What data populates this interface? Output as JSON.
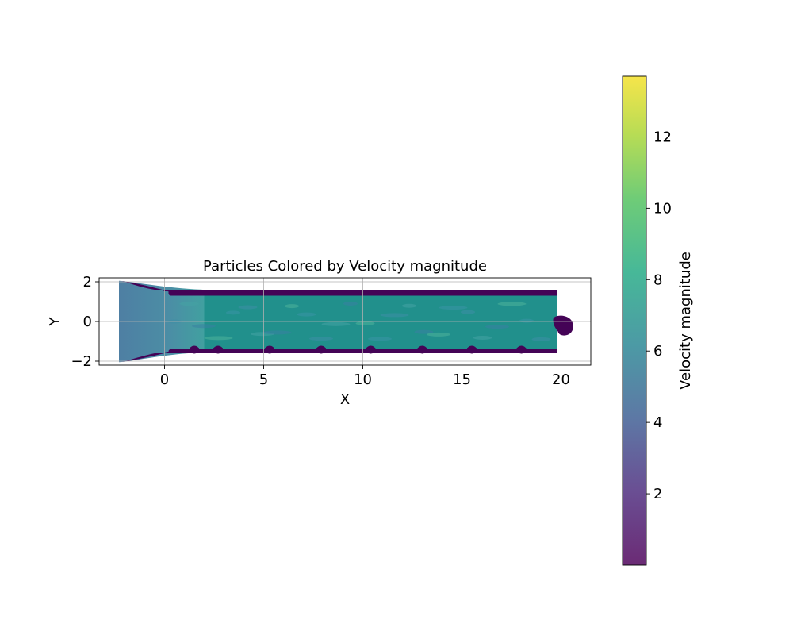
{
  "chart_data": {
    "type": "scatter",
    "title": "Particles Colored by Velocity magnitude",
    "xlabel": "X",
    "ylabel": "Y",
    "xlim": [
      -3.3,
      21.5
    ],
    "ylim": [
      -2.2,
      2.2
    ],
    "xticks": [
      0,
      5,
      10,
      15,
      20
    ],
    "yticks": [
      -2,
      0,
      2
    ],
    "grid": true,
    "colormap": "viridis",
    "colorbar": {
      "label": "Velocity magnitude",
      "range": [
        0.0,
        13.7
      ],
      "ticks": [
        2,
        4,
        6,
        8,
        10,
        12
      ]
    },
    "regions": [
      {
        "name": "inlet",
        "x": [
          -2.3,
          0.8
        ],
        "y": [
          -2.05,
          2.05
        ],
        "velocity": 4.5
      },
      {
        "name": "channel",
        "x": [
          0.8,
          19.8
        ],
        "y": [
          -1.45,
          1.45
        ],
        "velocity": 6.8
      },
      {
        "name": "top-wall",
        "x": [
          -0.5,
          19.8
        ],
        "y": [
          1.3,
          1.6
        ],
        "velocity": 0.1
      },
      {
        "name": "bottom-wall",
        "x": [
          -0.5,
          19.8
        ],
        "y": [
          -1.6,
          -1.4
        ],
        "velocity": 0.1
      },
      {
        "name": "outlet-blob",
        "x": [
          19.6,
          20.6
        ],
        "y": [
          -0.75,
          0.3
        ],
        "velocity": 0.1
      }
    ],
    "bottom_wall_bumps_x": [
      1.5,
      2.7,
      5.3,
      7.9,
      10.4,
      13.0,
      15.5,
      18.0
    ]
  }
}
